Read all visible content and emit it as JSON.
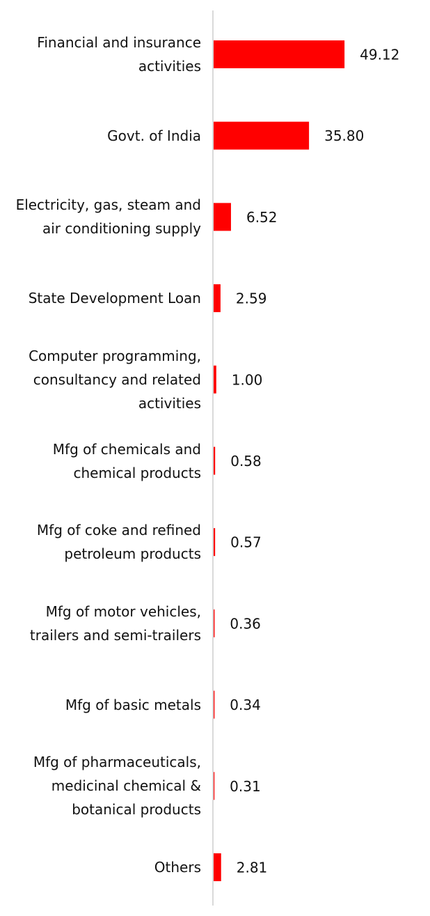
{
  "chart_data": {
    "type": "barh",
    "categories": [
      "Financial and insurance activities",
      "Govt. of India",
      "Electricity, gas, steam and air conditioning supply",
      "State Development Loan",
      "Computer programming, consultancy and related activities",
      "Mfg of chemicals and chemical products",
      "Mfg of coke and refined petroleum products",
      "Mfg of motor vehicles, trailers and semi-trailers",
      "Mfg of basic metals",
      "Mfg of pharmaceuticals, medicinal chemical & botanical products",
      "Others"
    ],
    "values": [
      49.12,
      35.8,
      6.52,
      2.59,
      1,
      0.58,
      0.57,
      0.36,
      0.34,
      0.31,
      2.81
    ],
    "value_labels": [
      "49.12",
      "35.80",
      "6.52",
      "2.59",
      "1.00",
      "0.58",
      "0.57",
      "0.36",
      "0.34",
      "0.31",
      "2.81"
    ],
    "color": "#ff0000"
  }
}
